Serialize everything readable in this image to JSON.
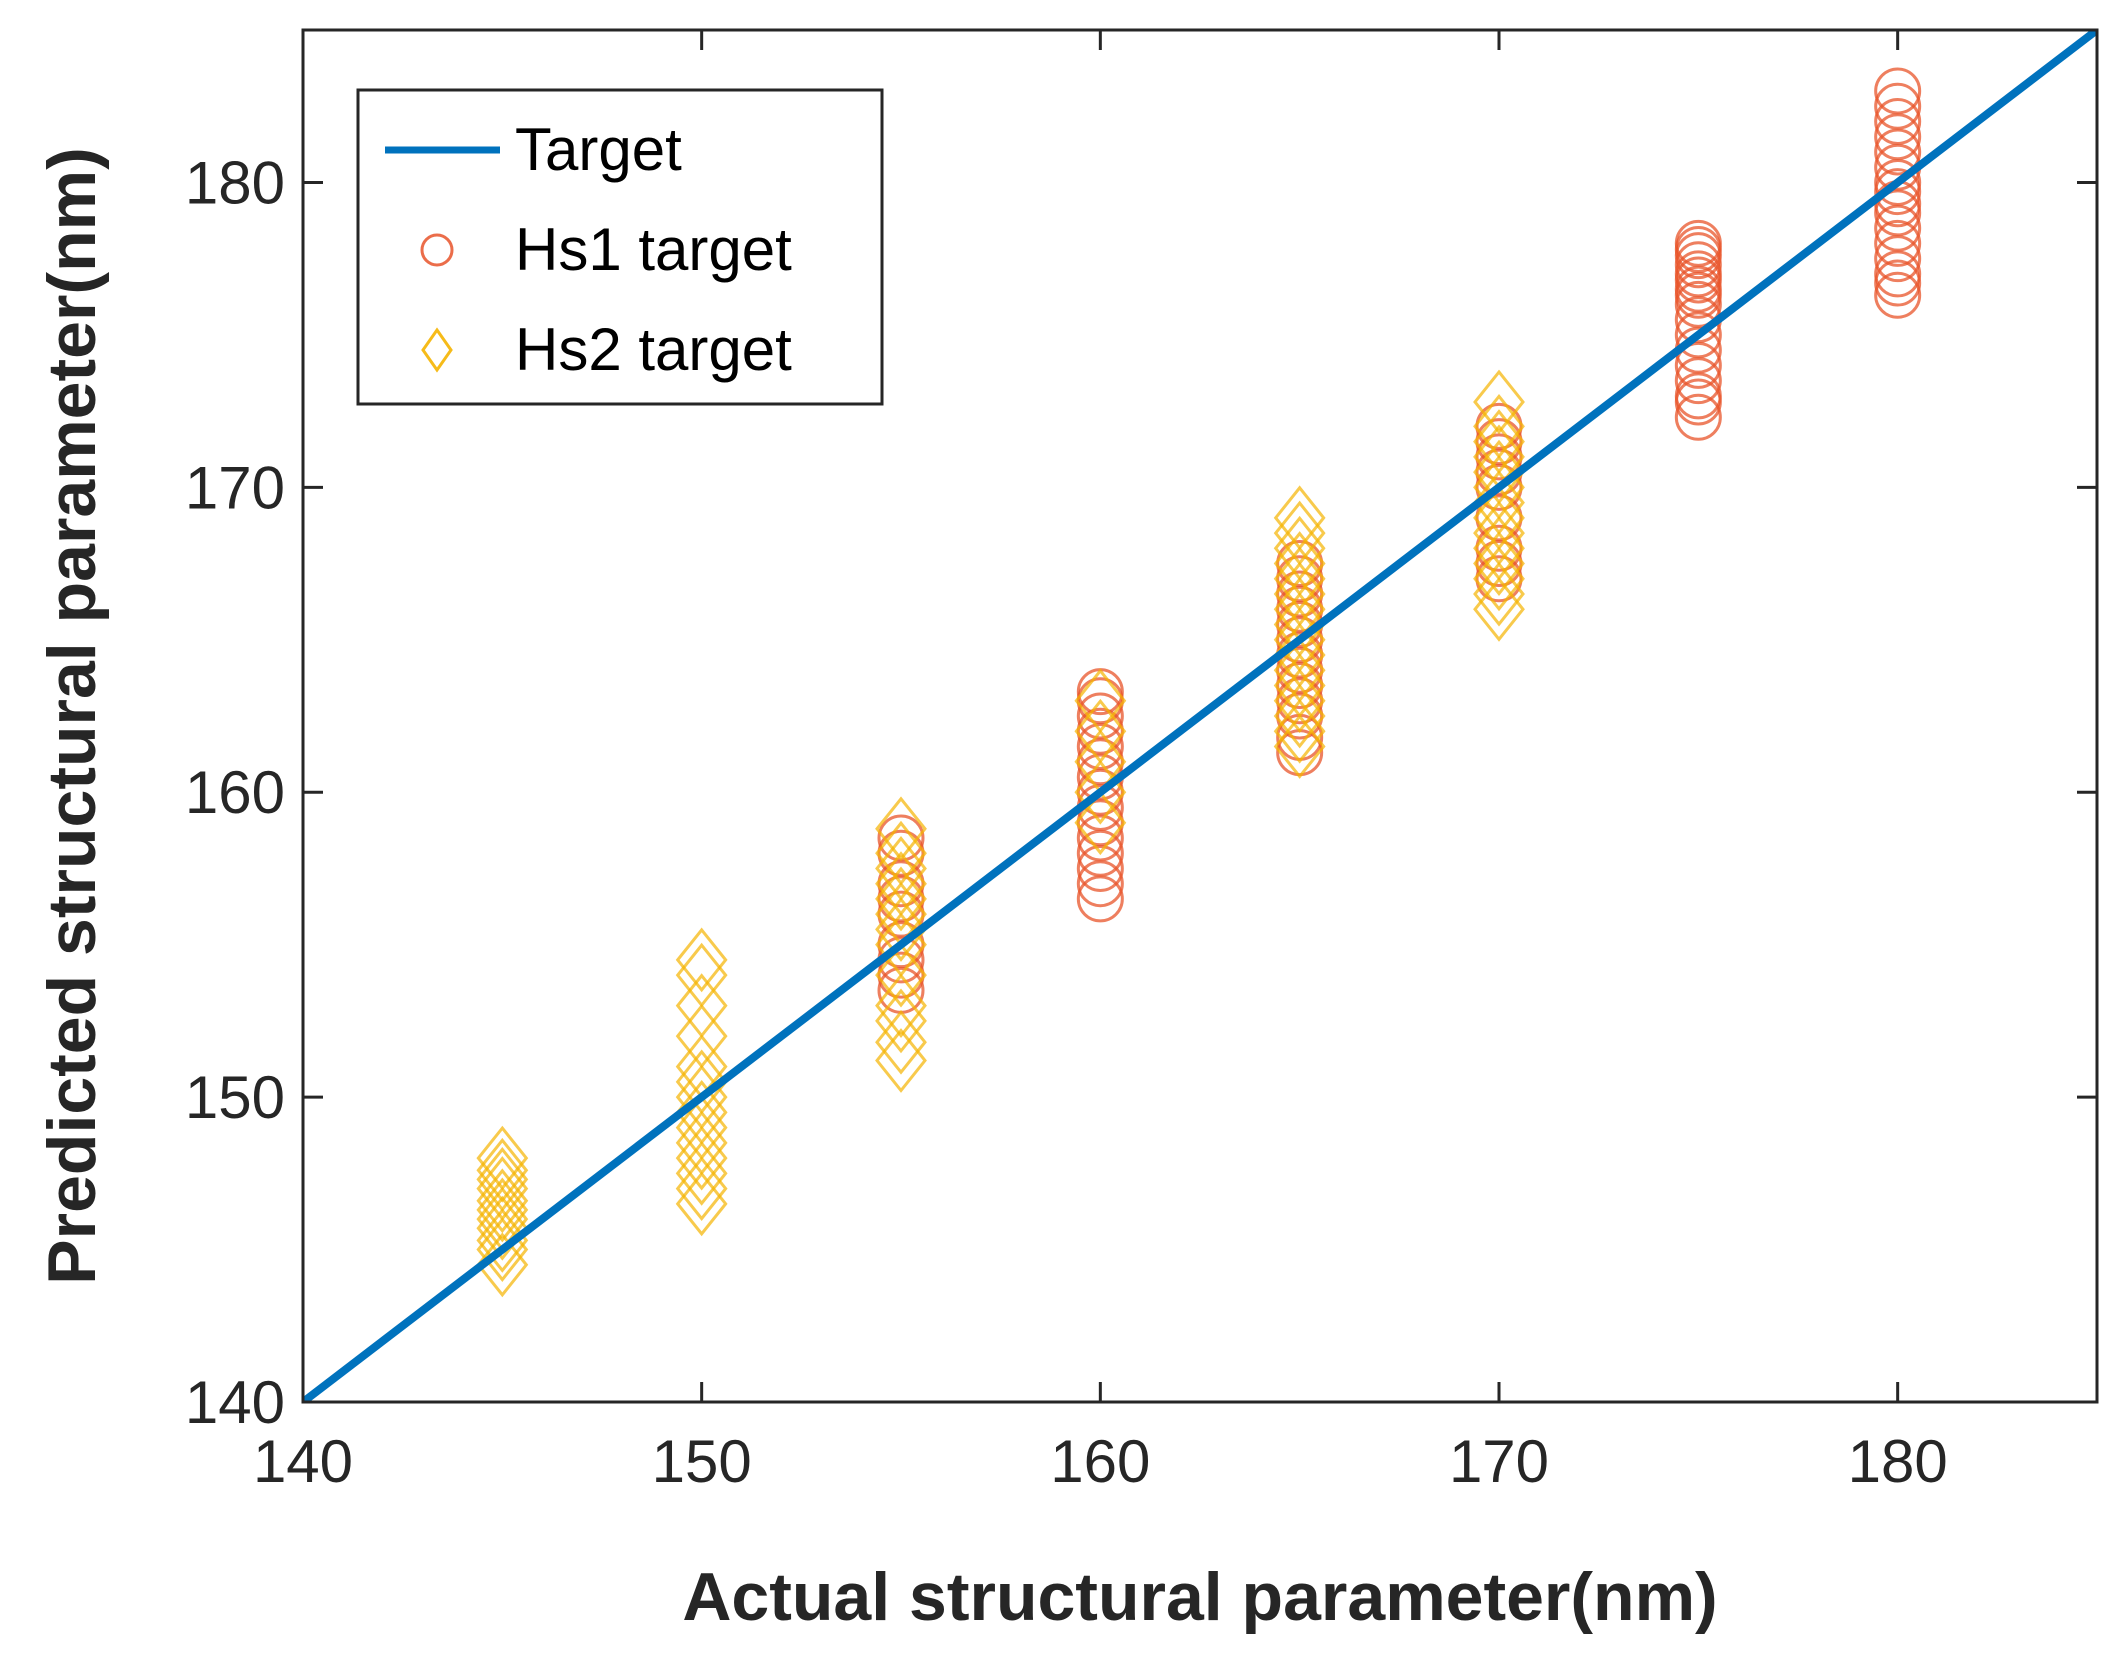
{
  "chart_data": {
    "type": "scatter",
    "xlabel": "Actual structural parameter(nm)",
    "ylabel": "Predicted structural parameter(nm)",
    "xlim": [
      140,
      185
    ],
    "ylim": [
      140,
      185
    ],
    "xticks": [
      "140",
      "150",
      "160",
      "170",
      "180"
    ],
    "yticks": [
      "140",
      "150",
      "160",
      "170",
      "180"
    ],
    "grid": false,
    "legend_placement": "top-left",
    "series": [
      {
        "name": "Target",
        "kind": "line",
        "color": "#0072BD",
        "x": [
          140,
          185
        ],
        "y": [
          140,
          185
        ]
      },
      {
        "name": "Hs1 target",
        "kind": "scatter",
        "marker": "circle",
        "color": "#E8542A",
        "x": [
          155,
          155,
          155,
          155,
          155,
          155,
          155,
          155,
          155,
          160,
          160,
          160,
          160,
          160,
          160,
          160,
          160,
          160,
          160,
          160,
          160,
          160,
          160,
          160,
          165,
          165,
          165,
          165,
          165,
          165,
          165,
          165,
          165,
          165,
          165,
          165,
          165,
          170,
          170,
          170,
          170,
          170,
          170,
          170,
          170,
          170,
          175,
          175,
          175,
          175,
          175,
          175,
          175,
          175,
          175,
          175,
          175,
          175,
          175,
          175,
          175,
          175,
          175,
          180,
          180,
          180,
          180,
          180,
          180,
          180,
          180,
          180,
          180,
          180,
          180,
          180,
          180,
          180,
          180
        ],
        "y": [
          153.5,
          154,
          154.5,
          155,
          156,
          156.5,
          157,
          158,
          158.5,
          156.5,
          157,
          157.5,
          158,
          158.5,
          159,
          159.5,
          160,
          160.5,
          161,
          161.5,
          162,
          162.5,
          163,
          163.3,
          161.3,
          161.8,
          162.5,
          163,
          163.5,
          164,
          164.5,
          165,
          165.5,
          166,
          166.5,
          167,
          167.5,
          167,
          167.5,
          168,
          169,
          170,
          170.5,
          171,
          171.5,
          172,
          172.3,
          172.8,
          173,
          173.5,
          174,
          174.5,
          175,
          175.5,
          176,
          176.3,
          176.5,
          176.8,
          177,
          177.3,
          177.6,
          177.8,
          178,
          176.3,
          176.7,
          177,
          177.5,
          178,
          178.5,
          179,
          179.3,
          179.7,
          180,
          180.5,
          181,
          181.5,
          182,
          182.5,
          183
        ]
      },
      {
        "name": "Hs2 target",
        "kind": "scatter",
        "marker": "diamond",
        "color": "#F5B400",
        "x": [
          145,
          145,
          145,
          145,
          145,
          145,
          145,
          145,
          145,
          145,
          145,
          150,
          150,
          150,
          150,
          150,
          150,
          150,
          150,
          150,
          150,
          150,
          150,
          150,
          150,
          155,
          155,
          155,
          155,
          155,
          155,
          155,
          155,
          155,
          155,
          155,
          155,
          155,
          160,
          160,
          160,
          160,
          160,
          165,
          165,
          165,
          165,
          165,
          165,
          165,
          165,
          165,
          165,
          165,
          165,
          165,
          165,
          165,
          165,
          170,
          170,
          170,
          170,
          170,
          170,
          170,
          170,
          170,
          170,
          170,
          170,
          170,
          170
        ],
        "y": [
          144.5,
          145,
          145.3,
          145.7,
          146,
          146.3,
          146.6,
          147,
          147.3,
          147.6,
          148,
          146.5,
          147,
          147.5,
          148,
          148.5,
          149,
          149.5,
          150,
          150.5,
          151,
          152,
          153,
          154,
          154.5,
          151.2,
          151.8,
          152.5,
          153,
          154,
          155,
          155.5,
          156,
          156.5,
          157,
          157.5,
          158,
          158.8,
          159,
          160,
          161,
          162,
          163,
          161.5,
          162,
          162.5,
          163,
          163.5,
          164,
          164.5,
          165,
          165.5,
          166,
          166.5,
          167,
          167.5,
          168,
          168.5,
          169,
          166,
          166.5,
          167,
          167.5,
          168,
          168.5,
          169,
          169.5,
          170,
          170.5,
          171,
          171.5,
          172,
          172.8
        ]
      }
    ]
  }
}
